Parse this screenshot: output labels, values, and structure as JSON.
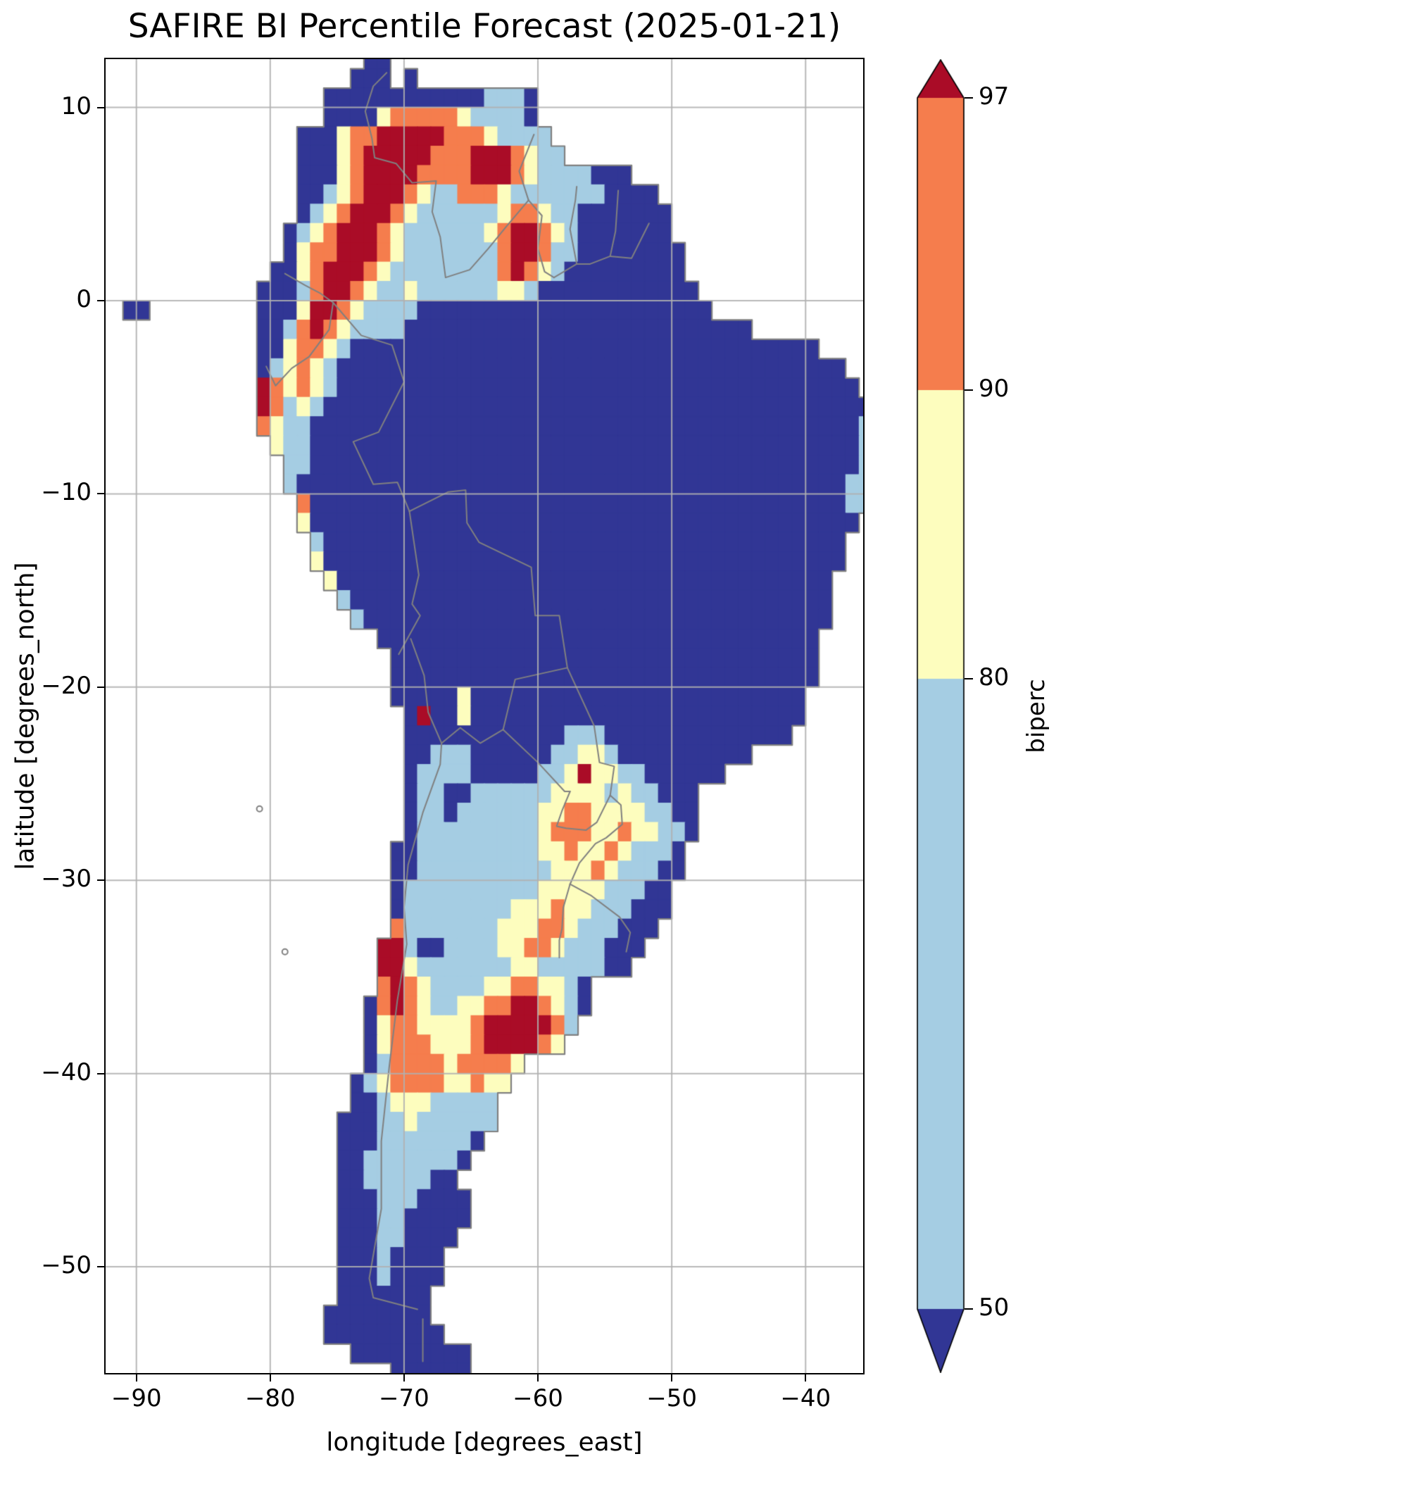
{
  "chart_data": {
    "type": "heatmap",
    "title": "SAFIRE BI Percentile Forecast (2025-01-21)",
    "xlabel": "longitude [degrees_east]",
    "ylabel": "latitude [degrees_north]",
    "background": "#ffffff",
    "xlim": [
      -92.3,
      -35.7
    ],
    "ylim": [
      -55.5,
      12.5
    ],
    "grid_on": true,
    "grid_color": "#b0b0b0",
    "border_color": "#808080",
    "xticks": [
      {
        "v": -90,
        "label": "−90"
      },
      {
        "v": -80,
        "label": "−80"
      },
      {
        "v": -70,
        "label": "−70"
      },
      {
        "v": -60,
        "label": "−60"
      },
      {
        "v": -50,
        "label": "−50"
      },
      {
        "v": -40,
        "label": "−40"
      }
    ],
    "yticks": [
      {
        "v": 10,
        "label": "10"
      },
      {
        "v": 0,
        "label": "0"
      },
      {
        "v": -10,
        "label": "−10"
      },
      {
        "v": -20,
        "label": "−20"
      },
      {
        "v": -30,
        "label": "−30"
      },
      {
        "v": -40,
        "label": "−40"
      },
      {
        "v": -50,
        "label": "−50"
      }
    ],
    "colorbar": {
      "label": "biperc",
      "levels": [
        50,
        80,
        90,
        97
      ],
      "extend": "both",
      "tick_labels_top_to_bottom": [
        "97",
        "90",
        "80",
        "50"
      ],
      "colors": {
        "below_50": "#313695",
        "p50_80": "#a5cde3",
        "p80_90": "#fdfdbe",
        "p90_97": "#f57d4d",
        "above_97": "#aa0c27"
      }
    },
    "raster": {
      "lon_origin": -92,
      "lat_origin": 13,
      "cell_deg": 1,
      "legend": {
        ".": "ocean/no data",
        "0": "below 50",
        "1": "50-80",
        "2": "80-90",
        "3": "90-97",
        "4": "above 97"
      },
      "rows": [
        {
          "s": 19,
          "v": "00"
        },
        {
          "s": 18,
          "v": "000.0"
        },
        {
          "s": 16,
          "v": "0000000000001110"
        },
        {
          "s": 16,
          "v": "0000233333211110"
        },
        {
          "s": 14,
          "v": "0002334444433321111"
        },
        {
          "s": 14,
          "v": "00023444443334443211"
        },
        {
          "s": 14,
          "v": "0002344443333444321111000"
        },
        {
          "s": 14,
          "v": "001234443211333211111110000"
        },
        {
          "s": 14,
          "v": "0123444321111112332110000000"
        },
        {
          "s": 13,
          "v": "01234443211111123443210000000"
        },
        {
          "s": 13,
          "v": "023344432111111134431100000000"
        },
        {
          "s": 12,
          "v": "0023444321111111134321000000000"
        },
        {
          "s": 11,
          "v": "000134432112111111221000000000000"
        },
        {
          "s": 1,
          "v": "00........0002443211110000000000000000000000"
        },
        {
          "s": 11,
          "v": "0013432111100000000000000000000000000"
        },
        {
          "s": 11,
          "v": "002332100000000000000000000000000000000000"
        },
        {
          "s": 11,
          "v": "01232100000000000000000000000000000000000000"
        },
        {
          "s": 11,
          "v": "432321000000000000000000000000000000000000000"
        },
        {
          "s": 11,
          "v": "43121000000000000000000000000000000000000000000"
        },
        {
          "s": 11,
          "v": "32110000000000000000000000000000000000000000011"
        },
        {
          "s": 12,
          "v": "2110000000000000000000000000000000000000000011"
        },
        {
          "s": 13,
          "v": "110000000000000000000000000000000000000000011"
        },
        {
          "s": 13,
          "v": "10000000000000000000000000000000000000000011"
        },
        {
          "s": 14,
          "v": "3000000000000000000000000000000000000000011"
        },
        {
          "s": 14,
          "v": "200000000000000000000000000000000000000000"
        },
        {
          "s": 15,
          "v": "1000000000000000000000000000000000000000"
        },
        {
          "s": 15,
          "v": "2000000000000000000000000000000000000000"
        },
        {
          "s": 16,
          "v": "20000000000000000000000000000000000000"
        },
        {
          "s": 17,
          "v": "1000000000000000000000000000000000000"
        },
        {
          "s": 18,
          "v": "100000000000000000000000000000000000"
        },
        {
          "s": 20,
          "v": "000000000000000000000000000000000"
        },
        {
          "s": 21,
          "v": "00000000000000000000000000000000"
        },
        {
          "s": 21,
          "v": "00000000000000000000000000000000"
        },
        {
          "s": 21,
          "v": "0000020000000000000000000000000"
        },
        {
          "s": 22,
          "v": "040020000000000000000000000000"
        },
        {
          "s": 22,
          "v": "00000000000011100000000000000"
        },
        {
          "s": 22,
          "v": "00111000000112210000000000"
        },
        {
          "s": 22,
          "v": "011110000011242211000000"
        },
        {
          "s": 22,
          "v": "0110011111122221211000"
        },
        {
          "s": 22,
          "v": "0110111111223322221100"
        },
        {
          "s": 22,
          "v": "0111111111233322322110"
        },
        {
          "s": 21,
          "v": "0011111111122322321110"
        },
        {
          "s": 21,
          "v": "0011111111112223211100"
        },
        {
          "s": 21,
          "v": "011111111112222211100"
        },
        {
          "s": 21,
          "v": "011111111222322111000"
        },
        {
          "s": 21,
          "v": "31111111222332111000"
        },
        {
          "s": 20,
          "v": "44100111122332111000"
        },
        {
          "s": 20,
          "v": "4421111111221111100"
        },
        {
          "s": 20,
          "v": "3432111122332210"
        },
        {
          "s": 19,
          "v": "03432112233443210"
        },
        {
          "s": 19,
          "v": "0233222234444431"
        },
        {
          "s": 19,
          "v": "023332223444432"
        },
        {
          "s": 19,
          "v": "013333233332"
        },
        {
          "s": 18,
          "v": "012333322322"
        },
        {
          "s": 18,
          "v": "00122211111"
        },
        {
          "s": 17,
          "v": "000112111111"
        },
        {
          "s": 17,
          "v": "00011111110"
        },
        {
          "s": 17,
          "v": "0011111110"
        },
        {
          "s": 17,
          "v": "001111100"
        },
        {
          "s": 17,
          "v": "0001110000"
        },
        {
          "s": 17,
          "v": "0001100000"
        },
        {
          "s": 17,
          "v": "000110000"
        },
        {
          "s": 17,
          "v": "00010000"
        },
        {
          "s": 17,
          "v": "00010000"
        },
        {
          "s": 17,
          "v": "0000000"
        },
        {
          "s": 16,
          "v": "00000000"
        },
        {
          "s": 16,
          "v": "000000000"
        },
        {
          "s": 18,
          "v": "000000000"
        },
        {
          "s": 21,
          "v": "000000"
        },
        {
          "s": 23,
          "v": "00"
        }
      ]
    },
    "borders": [
      [
        [
          -71.3,
          11.8
        ],
        [
          -72.3,
          11.1
        ],
        [
          -72.9,
          9.8
        ],
        [
          -72.4,
          8.4
        ],
        [
          -72.2,
          7.4
        ],
        [
          -70.6,
          7.1
        ],
        [
          -69.4,
          6.1
        ],
        [
          -67.6,
          6.2
        ],
        [
          -67.9,
          4.6
        ],
        [
          -67.3,
          3.3
        ],
        [
          -66.9,
          1.2
        ]
      ],
      [
        [
          -66.9,
          1.2
        ],
        [
          -65.1,
          1.6
        ],
        [
          -63.7,
          2.7
        ],
        [
          -62.4,
          3.8
        ],
        [
          -60.7,
          5.2
        ]
      ],
      [
        [
          -60.7,
          5.2
        ],
        [
          -61.4,
          6.7
        ],
        [
          -60.3,
          8.6
        ]
      ],
      [
        [
          -60.7,
          5.2
        ],
        [
          -59.7,
          4.4
        ],
        [
          -60.0,
          2.7
        ],
        [
          -59.5,
          1.5
        ],
        [
          -58.8,
          1.2
        ]
      ],
      [
        [
          -58.8,
          1.2
        ],
        [
          -57.1,
          1.9
        ],
        [
          -56.1,
          1.9
        ],
        [
          -54.6,
          2.3
        ],
        [
          -53.0,
          2.2
        ],
        [
          -51.7,
          4.0
        ]
      ],
      [
        [
          -57.1,
          1.9
        ],
        [
          -57.6,
          3.7
        ],
        [
          -57.2,
          5.2
        ],
        [
          -57.1,
          5.9
        ]
      ],
      [
        [
          -54.6,
          2.3
        ],
        [
          -54.2,
          3.6
        ],
        [
          -54.0,
          5.7
        ]
      ],
      [
        [
          -78.9,
          1.4
        ],
        [
          -77.4,
          0.8
        ],
        [
          -76.3,
          0.4
        ],
        [
          -75.3,
          -0.1
        ]
      ],
      [
        [
          -80.3,
          -3.4
        ],
        [
          -79.6,
          -4.4
        ],
        [
          -78.4,
          -3.5
        ],
        [
          -77.1,
          -2.9
        ],
        [
          -75.6,
          -1.5
        ],
        [
          -75.3,
          -0.1
        ]
      ],
      [
        [
          -75.3,
          -0.1
        ],
        [
          -73.2,
          -1.8
        ],
        [
          -70.9,
          -2.3
        ],
        [
          -70.0,
          -4.2
        ]
      ],
      [
        [
          -70.0,
          -4.2
        ],
        [
          -71.9,
          -6.8
        ],
        [
          -73.8,
          -7.3
        ],
        [
          -72.3,
          -9.5
        ],
        [
          -70.5,
          -9.4
        ],
        [
          -69.6,
          -10.9
        ]
      ],
      [
        [
          -69.6,
          -10.9
        ],
        [
          -68.9,
          -14.2
        ],
        [
          -69.4,
          -15.7
        ],
        [
          -68.8,
          -16.3
        ],
        [
          -69.6,
          -17.3
        ],
        [
          -70.4,
          -18.3
        ]
      ],
      [
        [
          -69.5,
          -17.5
        ],
        [
          -68.5,
          -19.4
        ],
        [
          -68.2,
          -21.3
        ],
        [
          -67.2,
          -22.9
        ]
      ],
      [
        [
          -67.2,
          -22.9
        ],
        [
          -67.3,
          -24.0
        ],
        [
          -68.6,
          -26.5
        ],
        [
          -69.7,
          -29.2
        ],
        [
          -70.0,
          -31.4
        ],
        [
          -69.8,
          -33.3
        ],
        [
          -70.5,
          -36.2
        ],
        [
          -71.1,
          -39.6
        ],
        [
          -71.7,
          -43.5
        ],
        [
          -71.7,
          -47.0
        ],
        [
          -72.6,
          -50.6
        ],
        [
          -72.3,
          -51.6
        ],
        [
          -69.0,
          -52.2
        ]
      ],
      [
        [
          -68.6,
          -52.7
        ],
        [
          -68.6,
          -54.9
        ]
      ],
      [
        [
          -69.6,
          -10.9
        ],
        [
          -66.7,
          -9.9
        ],
        [
          -65.4,
          -9.8
        ],
        [
          -65.3,
          -11.5
        ],
        [
          -64.4,
          -12.5
        ],
        [
          -60.5,
          -13.8
        ],
        [
          -60.2,
          -16.3
        ],
        [
          -58.4,
          -16.3
        ],
        [
          -57.8,
          -19.0
        ]
      ],
      [
        [
          -57.8,
          -19.0
        ],
        [
          -61.7,
          -19.6
        ],
        [
          -62.6,
          -22.2
        ]
      ],
      [
        [
          -62.6,
          -22.2
        ],
        [
          -64.3,
          -22.9
        ],
        [
          -65.8,
          -22.1
        ],
        [
          -67.2,
          -22.9
        ]
      ],
      [
        [
          -57.8,
          -19.0
        ],
        [
          -55.8,
          -22.0
        ],
        [
          -55.4,
          -23.9
        ],
        [
          -54.3,
          -24.1
        ],
        [
          -54.6,
          -25.6
        ]
      ],
      [
        [
          -62.6,
          -22.2
        ],
        [
          -60.0,
          -23.9
        ],
        [
          -58.0,
          -25.4
        ],
        [
          -57.6,
          -25.4
        ]
      ],
      [
        [
          -57.6,
          -25.4
        ],
        [
          -58.2,
          -26.4
        ],
        [
          -58.6,
          -27.2
        ],
        [
          -57.9,
          -27.3
        ],
        [
          -56.4,
          -27.4
        ],
        [
          -55.6,
          -27.0
        ],
        [
          -54.6,
          -25.6
        ]
      ],
      [
        [
          -54.6,
          -25.6
        ],
        [
          -53.8,
          -26.1
        ],
        [
          -53.7,
          -27.1
        ],
        [
          -54.9,
          -27.8
        ],
        [
          -55.7,
          -28.1
        ],
        [
          -56.9,
          -29.1
        ],
        [
          -57.6,
          -30.2
        ]
      ],
      [
        [
          -57.6,
          -30.2
        ],
        [
          -58.1,
          -31.4
        ],
        [
          -58.2,
          -32.5
        ],
        [
          -58.4,
          -33.1
        ],
        [
          -58.4,
          -34.0
        ]
      ],
      [
        [
          -57.6,
          -30.2
        ],
        [
          -56.0,
          -30.8
        ],
        [
          -53.9,
          -31.9
        ],
        [
          -53.1,
          -32.7
        ],
        [
          -53.4,
          -33.7
        ]
      ]
    ],
    "islets": [
      [
        -80.8,
        -26.3
      ],
      [
        -78.9,
        -33.7
      ]
    ]
  }
}
